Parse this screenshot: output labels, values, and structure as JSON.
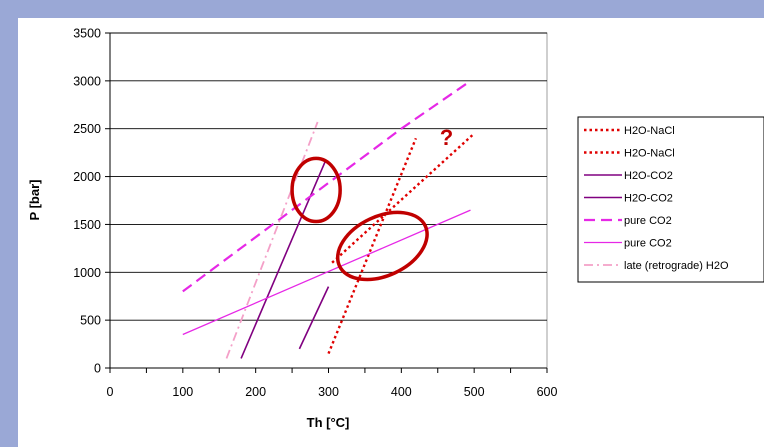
{
  "chart_data": {
    "type": "line",
    "xlabel": "Th [°C]",
    "ylabel": "P [bar]",
    "xlim": [
      0,
      600
    ],
    "ylim": [
      0,
      3500
    ],
    "x_ticks": [
      0,
      100,
      200,
      300,
      400,
      500,
      600
    ],
    "y_ticks": [
      0,
      500,
      1000,
      1500,
      2000,
      2500,
      3000,
      3500
    ],
    "grid": "horizontal",
    "legend_position": "right",
    "series": [
      {
        "name": "H2O-NaCl",
        "color": "#e00000",
        "dash": "dotted",
        "width": 2.4,
        "points": [
          [
            300,
            150
          ],
          [
            420,
            2400
          ]
        ]
      },
      {
        "name": "H2O-NaCl",
        "color": "#e00000",
        "dash": "dotted",
        "width": 2.4,
        "points": [
          [
            305,
            1100
          ],
          [
            500,
            2450
          ]
        ]
      },
      {
        "name": "H2O-CO2",
        "color": "#800080",
        "dash": "solid",
        "width": 1.6,
        "points": [
          [
            180,
            100
          ],
          [
            295,
            2150
          ]
        ]
      },
      {
        "name": "H2O-CO2",
        "color": "#800080",
        "dash": "solid",
        "width": 1.6,
        "points": [
          [
            260,
            200
          ],
          [
            300,
            850
          ]
        ]
      },
      {
        "name": "pure CO2",
        "color": "#e628e6",
        "dash": "long",
        "width": 2.2,
        "points": [
          [
            100,
            800
          ],
          [
            400,
            2500
          ],
          [
            495,
            3000
          ]
        ]
      },
      {
        "name": "pure CO2",
        "color": "#e628e6",
        "dash": "solid",
        "width": 1.3,
        "points": [
          [
            100,
            350
          ],
          [
            495,
            1650
          ]
        ]
      },
      {
        "name": "late (retrograde) H2O",
        "color": "#f4a0c8",
        "dash": "dashdot",
        "width": 1.8,
        "points": [
          [
            160,
            100
          ],
          [
            285,
            2570
          ]
        ]
      }
    ],
    "annotations": [
      {
        "type": "ellipse",
        "cx": 283,
        "cy": 1860,
        "rx": 33,
        "ry": 330,
        "rotate": 0,
        "color": "#c00000"
      },
      {
        "type": "ellipse",
        "cx": 374,
        "cy": 1275,
        "rx": 65,
        "ry": 310,
        "rotate": -25,
        "color": "#c00000"
      },
      {
        "type": "text",
        "x": 462,
        "y": 2330,
        "text": "?",
        "color": "#c00000"
      }
    ]
  }
}
